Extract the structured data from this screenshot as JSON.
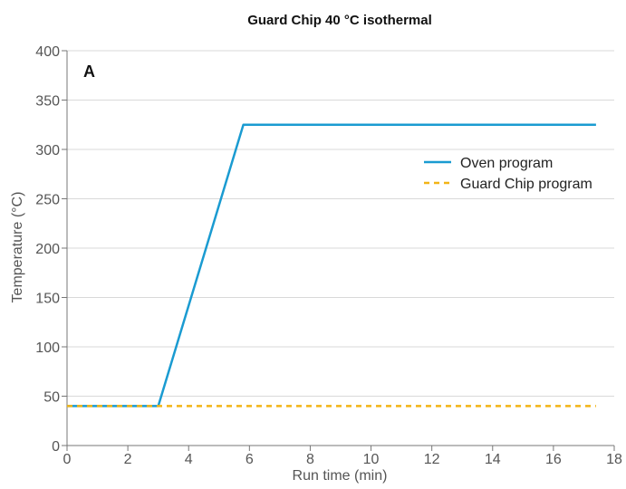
{
  "chart_data": {
    "type": "line",
    "title": "Guard Chip 40 °C isothermal",
    "panel_label": "A",
    "xlabel": "Run time (min)",
    "ylabel": "Temperature (°C)",
    "xlim": [
      0,
      18
    ],
    "ylim": [
      0,
      400
    ],
    "x_ticks": [
      0,
      2,
      4,
      6,
      8,
      10,
      12,
      14,
      16,
      18
    ],
    "y_ticks": [
      0,
      50,
      100,
      150,
      200,
      250,
      300,
      350,
      400
    ],
    "grid": "horizontal",
    "legend_position": "right",
    "series": [
      {
        "name": "Oven program",
        "color": "#1a9bd1",
        "style": "solid",
        "x": [
          0,
          3,
          5.8,
          17.4
        ],
        "y": [
          40,
          40,
          325,
          325
        ]
      },
      {
        "name": "Guard Chip program",
        "color": "#f2b416",
        "style": "dashed",
        "x": [
          0,
          17.4
        ],
        "y": [
          40,
          40
        ]
      }
    ]
  }
}
